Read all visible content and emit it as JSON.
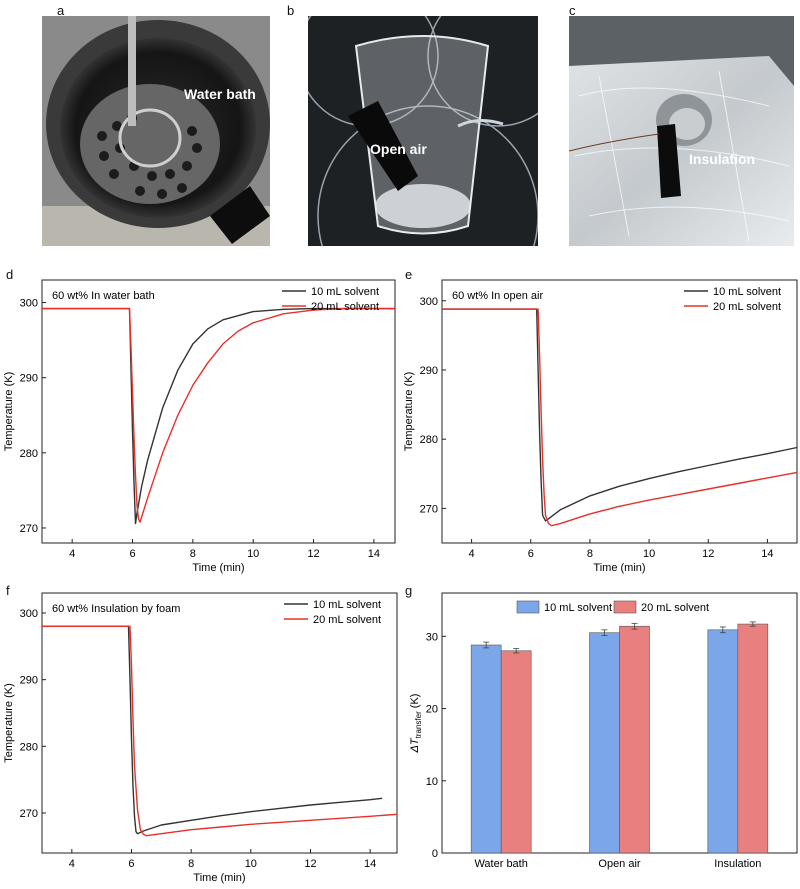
{
  "panels": {
    "a": {
      "letter": "a",
      "caption": "Water bath"
    },
    "b": {
      "letter": "b",
      "caption": "Open air"
    },
    "c": {
      "letter": "c",
      "caption": "Insulation"
    },
    "d": {
      "letter": "d"
    },
    "e": {
      "letter": "e"
    },
    "f": {
      "letter": "f"
    },
    "g": {
      "letter": "g"
    }
  },
  "colors": {
    "series_dark": "#333333",
    "series_red": "#e8302a",
    "bar_blue": "#7ba7e8",
    "bar_red": "#e88080"
  },
  "chart_data": [
    {
      "id": "d",
      "type": "line",
      "annotation": "60 wt%   In water bath",
      "xlabel": "Time (min)",
      "ylabel": "Temperature (K)",
      "xlim": [
        3,
        14.7
      ],
      "ylim": [
        268,
        303
      ],
      "xticks": [
        4,
        6,
        8,
        10,
        12,
        14
      ],
      "yticks": [
        270,
        280,
        290,
        300
      ],
      "legend": "top-right",
      "series": [
        {
          "name": "10 mL solvent",
          "color": "#333333",
          "x": [
            3,
            5.9,
            5.95,
            6.0,
            6.05,
            6.1,
            6.15,
            6.3,
            6.5,
            7.0,
            7.5,
            8.0,
            8.5,
            9.0,
            10.0,
            11.0,
            12.0,
            13.0,
            14.7
          ],
          "y": [
            299.2,
            299.2,
            291,
            283,
            276,
            270.6,
            272.0,
            275.5,
            279,
            286,
            291,
            294.5,
            296.5,
            297.7,
            298.8,
            299.1,
            299.2,
            299.2,
            299.2
          ]
        },
        {
          "name": "20 mL solvent",
          "color": "#e8302a",
          "x": [
            3,
            5.9,
            5.95,
            6.0,
            6.05,
            6.1,
            6.15,
            6.2,
            6.25,
            6.5,
            7.0,
            7.5,
            8.0,
            8.5,
            9.0,
            9.5,
            10.0,
            11.0,
            12.0,
            13.0,
            14.7
          ],
          "y": [
            299.2,
            299.2,
            294,
            288,
            282,
            277,
            273,
            271.2,
            270.8,
            274,
            280,
            285,
            289,
            292,
            294.5,
            296.2,
            297.3,
            298.5,
            299.0,
            299.2,
            299.2
          ]
        }
      ]
    },
    {
      "id": "e",
      "type": "line",
      "annotation": "60 wt%   In open air",
      "xlabel": "Time (min)",
      "ylabel": "Temperature (K)",
      "xlim": [
        3,
        15
      ],
      "ylim": [
        265,
        303
      ],
      "xticks": [
        4,
        6,
        8,
        10,
        12,
        14
      ],
      "yticks": [
        270,
        280,
        290,
        300
      ],
      "legend": "top-right",
      "series": [
        {
          "name": "10 mL solvent",
          "color": "#333333",
          "x": [
            3,
            6.2,
            6.25,
            6.3,
            6.35,
            6.4,
            6.5,
            6.6,
            7.0,
            8.0,
            9.0,
            10.0,
            11.0,
            12.0,
            13.0,
            14.0,
            15.0
          ],
          "y": [
            298.8,
            298.8,
            290,
            281,
            274,
            269,
            268.2,
            268.5,
            269.8,
            271.8,
            273.2,
            274.3,
            275.3,
            276.2,
            277.1,
            277.9,
            278.8
          ]
        },
        {
          "name": "20 mL solvent",
          "color": "#e8302a",
          "x": [
            3,
            6.25,
            6.3,
            6.35,
            6.4,
            6.45,
            6.5,
            6.6,
            6.7,
            7.0,
            8.0,
            9.0,
            10.0,
            11.0,
            12.0,
            13.0,
            14.0,
            15.0
          ],
          "y": [
            298.8,
            298.8,
            292,
            284,
            277,
            272,
            269,
            267.8,
            267.5,
            267.8,
            269.2,
            270.3,
            271.2,
            272.0,
            272.8,
            273.6,
            274.4,
            275.2
          ]
        }
      ]
    },
    {
      "id": "f",
      "type": "line",
      "annotation": "60 wt%   Insulation by foam",
      "xlabel": "Time (min)",
      "ylabel": "Temperature (K)",
      "xlim": [
        3,
        14.9
      ],
      "ylim": [
        264,
        303
      ],
      "xticks": [
        4,
        6,
        8,
        10,
        12,
        14
      ],
      "yticks": [
        270,
        280,
        290,
        300
      ],
      "legend": "top-right",
      "series": [
        {
          "name": "10 mL solvent",
          "color": "#333333",
          "x": [
            3,
            5.9,
            5.95,
            6.0,
            6.05,
            6.1,
            6.15,
            6.2,
            6.4,
            7.0,
            8.0,
            9.0,
            10.0,
            11.0,
            12.0,
            13.0,
            14.0,
            14.4
          ],
          "y": [
            298.0,
            298.0,
            290,
            281,
            274,
            269.5,
            267.2,
            266.9,
            267.3,
            268.2,
            268.9,
            269.6,
            270.2,
            270.7,
            271.2,
            271.6,
            272.0,
            272.2
          ]
        },
        {
          "name": "20 mL solvent",
          "color": "#e8302a",
          "x": [
            3,
            5.95,
            6.0,
            6.05,
            6.1,
            6.2,
            6.3,
            6.4,
            6.5,
            7.0,
            8.0,
            9.0,
            10.0,
            11.0,
            12.0,
            13.0,
            14.0,
            14.9
          ],
          "y": [
            298.0,
            298.0,
            292,
            284,
            277,
            270.5,
            267.5,
            266.8,
            266.6,
            266.9,
            267.5,
            267.9,
            268.3,
            268.6,
            268.9,
            269.2,
            269.5,
            269.8
          ]
        }
      ]
    },
    {
      "id": "g",
      "type": "bar",
      "ylabel_symbol": "ΔT",
      "ylabel_sub": "transfer",
      "ylabel_unit": " (K)",
      "ylim": [
        0,
        36
      ],
      "yticks": [
        0,
        10,
        20,
        30
      ],
      "legend": "top-center",
      "categories": [
        "Water bath",
        "Open air",
        "Insulation"
      ],
      "series": [
        {
          "name": "10 mL solvent",
          "color": "#7ba7e8",
          "values": [
            28.8,
            30.5,
            30.9
          ],
          "errors": [
            0.4,
            0.4,
            0.4
          ]
        },
        {
          "name": "20 mL solvent",
          "color": "#e88080",
          "values": [
            28.0,
            31.4,
            31.7
          ],
          "errors": [
            0.3,
            0.4,
            0.3
          ]
        }
      ]
    }
  ]
}
